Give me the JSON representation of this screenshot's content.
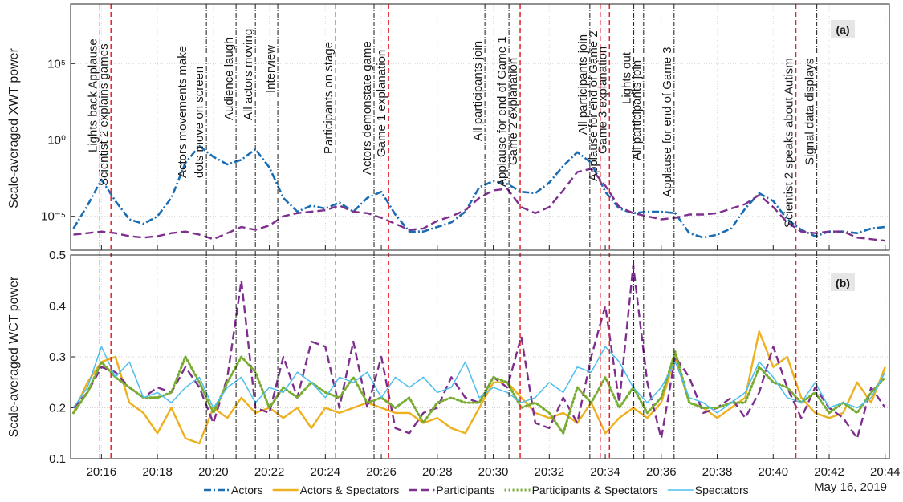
{
  "chart_data": [
    {
      "type": "line",
      "ylabel": "Scale-averaged XWT power",
      "panel_label": "(a)",
      "log": true,
      "x": [
        15,
        15.5,
        16,
        16.5,
        17,
        17.5,
        18,
        18.5,
        19,
        19.5,
        20,
        20.5,
        21,
        21.5,
        22,
        22.5,
        23,
        23.5,
        24,
        24.5,
        25,
        25.5,
        26,
        26.5,
        27,
        27.5,
        28,
        28.5,
        29,
        29.5,
        30,
        30.5,
        31,
        31.5,
        32,
        32.5,
        33,
        33.5,
        34,
        34.5,
        35,
        35.5,
        36,
        36.5,
        37,
        37.5,
        38,
        38.5,
        39,
        39.5,
        40,
        40.5,
        41,
        41.5,
        42,
        42.5,
        43,
        43.5,
        44
      ],
      "xlim": [
        14.9,
        44.15
      ],
      "ylim": [
        6e-08,
        800000000.0
      ],
      "yticks": [
        {
          "value": 1e-05,
          "label": "10⁻⁵"
        },
        {
          "value": 1,
          "label": "10⁰"
        },
        {
          "value": 100000,
          "label": "10⁵"
        }
      ],
      "grid": true,
      "series": [
        {
          "name": "Actors",
          "color": "#1a6db3",
          "style": "dashdot",
          "values": [
            1.6e-06,
            5e-05,
            0.0025,
            0.0001,
            6.3e-06,
            3.2e-06,
            1e-05,
            0.00016,
            0.032,
            0.4,
            0.079,
            0.025,
            0.05,
            0.25,
            0.016,
            0.00016,
            2e-05,
            5e-05,
            3.2e-05,
            7.9e-05,
            2e-05,
            0.00016,
            0.0004,
            1.3e-05,
            1e-06,
            1e-06,
            2e-06,
            4e-06,
            2e-05,
            0.00079,
            0.002,
            0.0013,
            0.0004,
            0.00032,
            0.0016,
            0.02,
            0.16,
            0.032,
            0.0004,
            3.2e-05,
            1.6e-05,
            2e-05,
            2e-05,
            1.6e-05,
            7.9e-07,
            4e-07,
            6.3e-07,
            1.6e-06,
            3.2e-05,
            0.00032,
            0.0001,
            6.3e-06,
            1.3e-06,
            5e-07,
            1e-06,
            1e-06,
            7.9e-07,
            1.6e-06,
            2e-06
          ]
        },
        {
          "name": "Participants",
          "color": "#7e2f8e",
          "style": "dashed",
          "values": [
            6.3e-07,
            7.9e-07,
            1e-06,
            7.9e-07,
            5e-07,
            4e-07,
            5e-07,
            7.9e-07,
            1e-06,
            6.3e-07,
            3.2e-07,
            7.9e-07,
            2e-06,
            1.3e-06,
            2.5e-06,
            1e-05,
            1.6e-05,
            2e-05,
            2.5e-05,
            5e-05,
            2e-05,
            1.6e-05,
            7.9e-06,
            3.2e-06,
            1.3e-06,
            1.6e-06,
            5e-06,
            1e-05,
            2.5e-05,
            0.00016,
            0.0005,
            0.00063,
            4e-05,
            1.6e-05,
            4e-05,
            0.0005,
            0.0079,
            0.013,
            0.001,
            4e-05,
            1.6e-05,
            1e-05,
            6.3e-06,
            7.9e-06,
            1.3e-05,
            1.3e-05,
            1.6e-05,
            3.2e-05,
            6.3e-05,
            0.00025,
            4e-05,
            4e-06,
            1e-06,
            7.9e-07,
            1e-06,
            1e-06,
            4e-07,
            3.2e-07,
            2.5e-07
          ]
        }
      ],
      "events": [
        {
          "label": [
            "Lights back Applause"
          ],
          "x": 15.94,
          "color": "#000000"
        },
        {
          "label": [
            "Scientist 2 explains games"
          ],
          "x": 16.34,
          "color": "#e8202a"
        },
        {
          "label": [
            "Actors movements make",
            "dots move on screen"
          ],
          "x": 19.75,
          "color": "#000000"
        },
        {
          "label": [
            "Audience laugh"
          ],
          "x": 20.81,
          "color": "#000000"
        },
        {
          "label": [
            "All actors moving"
          ],
          "x": 21.5,
          "color": "#000000"
        },
        {
          "label": [
            "Interview"
          ],
          "x": 22.3,
          "color": "#000000"
        },
        {
          "label": [
            "Participants on stage"
          ],
          "x": 24.37,
          "color": "#e8202a"
        },
        {
          "label": [
            "Actors demonstate game"
          ],
          "x": 25.74,
          "color": "#000000"
        },
        {
          "label": [
            "Game 1 explanation"
          ],
          "x": 26.26,
          "color": "#e8202a"
        },
        {
          "label": [
            "All participants join"
          ],
          "x": 29.7,
          "color": "#000000"
        },
        {
          "label": [
            "Applause for end of Game 1"
          ],
          "x": 30.56,
          "color": "#000000"
        },
        {
          "label": [
            "Game 2 explanation"
          ],
          "x": 30.96,
          "color": "#e8202a"
        },
        {
          "label": [
            "All participants join"
          ],
          "x": 33.45,
          "color": "#000000"
        },
        {
          "label": [
            "Applause for end of Game 2"
          ],
          "x": 33.82,
          "color": "#e8202a"
        },
        {
          "label": [
            "Game 3 explanation"
          ],
          "x": 34.15,
          "color": "#e8202a"
        },
        {
          "label": [
            "Lights out"
          ],
          "x": 35.02,
          "color": "#000000"
        },
        {
          "label": [
            "All participants join"
          ],
          "x": 35.37,
          "color": "#000000"
        },
        {
          "label": [
            "Applause for end of Game 3"
          ],
          "x": 36.46,
          "color": "#000000"
        },
        {
          "label": [
            "Scientist 2 speaks about Autism"
          ],
          "x": 40.81,
          "color": "#e8202a"
        },
        {
          "label": [
            "Signal data displays"
          ],
          "x": 41.56,
          "color": "#000000"
        }
      ]
    },
    {
      "type": "line",
      "ylabel": "Scale-averaged WCT power",
      "panel_label": "(b)",
      "date_label": "May 16, 2019",
      "x": [
        15,
        15.5,
        16,
        16.5,
        17,
        17.5,
        18,
        18.5,
        19,
        19.5,
        20,
        20.5,
        21,
        21.5,
        22,
        22.5,
        23,
        23.5,
        24,
        24.5,
        25,
        25.5,
        26,
        26.5,
        27,
        27.5,
        28,
        28.5,
        29,
        29.5,
        30,
        30.5,
        31,
        31.5,
        32,
        32.5,
        33,
        33.5,
        34,
        34.5,
        35,
        35.5,
        36,
        36.5,
        37,
        37.5,
        38,
        38.5,
        39,
        39.5,
        40,
        40.5,
        41,
        41.5,
        42,
        42.5,
        43,
        43.5,
        44
      ],
      "xlim": [
        14.9,
        44.15
      ],
      "ylim": [
        0.1,
        0.5
      ],
      "xticks": [
        {
          "value": 16,
          "label": "20:16"
        },
        {
          "value": 18,
          "label": "20:18"
        },
        {
          "value": 20,
          "label": "20:20"
        },
        {
          "value": 22,
          "label": "20:22"
        },
        {
          "value": 24,
          "label": "20:24"
        },
        {
          "value": 26,
          "label": "20:26"
        },
        {
          "value": 28,
          "label": "20:28"
        },
        {
          "value": 30,
          "label": "20:30"
        },
        {
          "value": 32,
          "label": "20:32"
        },
        {
          "value": 34,
          "label": "20:34"
        },
        {
          "value": 36,
          "label": "20:36"
        },
        {
          "value": 38,
          "label": "20:38"
        },
        {
          "value": 40,
          "label": "20:40"
        },
        {
          "value": 42,
          "label": "20:42"
        },
        {
          "value": 44,
          "label": "20:44"
        }
      ],
      "yticks": [
        0.1,
        0.2,
        0.3,
        0.4,
        0.5
      ],
      "grid": true,
      "series": [
        {
          "name": "Actors & Spectators",
          "color": "#edb120",
          "style": "solid",
          "values": [
            0.19,
            0.25,
            0.29,
            0.3,
            0.21,
            0.19,
            0.15,
            0.2,
            0.14,
            0.13,
            0.2,
            0.18,
            0.22,
            0.19,
            0.2,
            0.18,
            0.2,
            0.16,
            0.2,
            0.19,
            0.2,
            0.21,
            0.2,
            0.19,
            0.19,
            0.17,
            0.18,
            0.16,
            0.15,
            0.2,
            0.25,
            0.25,
            0.22,
            0.19,
            0.18,
            0.19,
            0.17,
            0.21,
            0.15,
            0.18,
            0.2,
            0.18,
            0.21,
            0.3,
            0.21,
            0.2,
            0.18,
            0.2,
            0.22,
            0.35,
            0.28,
            0.3,
            0.22,
            0.19,
            0.18,
            0.19,
            0.25,
            0.21,
            0.28
          ]
        },
        {
          "name": "Participants",
          "color": "#7e2f8e",
          "style": "dashed",
          "values": [
            0.2,
            0.23,
            0.28,
            0.27,
            0.24,
            0.22,
            0.24,
            0.23,
            0.28,
            0.24,
            0.17,
            0.26,
            0.45,
            0.2,
            0.19,
            0.3,
            0.22,
            0.33,
            0.32,
            0.2,
            0.33,
            0.2,
            0.3,
            0.16,
            0.15,
            0.19,
            0.2,
            0.26,
            0.22,
            0.21,
            0.26,
            0.24,
            0.34,
            0.17,
            0.16,
            0.22,
            0.17,
            0.3,
            0.4,
            0.21,
            0.48,
            0.25,
            0.14,
            0.3,
            0.26,
            0.19,
            0.2,
            0.22,
            0.18,
            0.23,
            0.32,
            0.24,
            0.18,
            0.24,
            0.2,
            0.18,
            0.14,
            0.24,
            0.2
          ]
        },
        {
          "name": "Participants & Spectators",
          "color": "#77ac30",
          "style": "dotted",
          "values": [
            0.19,
            0.23,
            0.29,
            0.26,
            0.24,
            0.22,
            0.22,
            0.23,
            0.3,
            0.25,
            0.19,
            0.25,
            0.3,
            0.27,
            0.2,
            0.24,
            0.22,
            0.25,
            0.23,
            0.22,
            0.26,
            0.21,
            0.22,
            0.2,
            0.22,
            0.17,
            0.21,
            0.22,
            0.21,
            0.21,
            0.26,
            0.25,
            0.2,
            0.21,
            0.19,
            0.15,
            0.24,
            0.21,
            0.26,
            0.2,
            0.24,
            0.19,
            0.22,
            0.31,
            0.21,
            0.2,
            0.2,
            0.21,
            0.21,
            0.28,
            0.25,
            0.24,
            0.21,
            0.23,
            0.19,
            0.21,
            0.19,
            0.23,
            0.26
          ]
        },
        {
          "name": "Spectators",
          "color": "#4dbeee",
          "style": "thin",
          "values": [
            0.2,
            0.24,
            0.32,
            0.26,
            0.29,
            0.22,
            0.23,
            0.21,
            0.24,
            0.26,
            0.2,
            0.24,
            0.26,
            0.21,
            0.24,
            0.23,
            0.27,
            0.25,
            0.22,
            0.26,
            0.25,
            0.27,
            0.22,
            0.26,
            0.24,
            0.26,
            0.23,
            0.24,
            0.29,
            0.22,
            0.24,
            0.23,
            0.21,
            0.22,
            0.25,
            0.23,
            0.28,
            0.27,
            0.32,
            0.29,
            0.24,
            0.21,
            0.24,
            0.29,
            0.22,
            0.21,
            0.19,
            0.21,
            0.23,
            0.29,
            0.26,
            0.22,
            0.21,
            0.25,
            0.2,
            0.21,
            0.2,
            0.22,
            0.27
          ]
        }
      ]
    }
  ]
}
